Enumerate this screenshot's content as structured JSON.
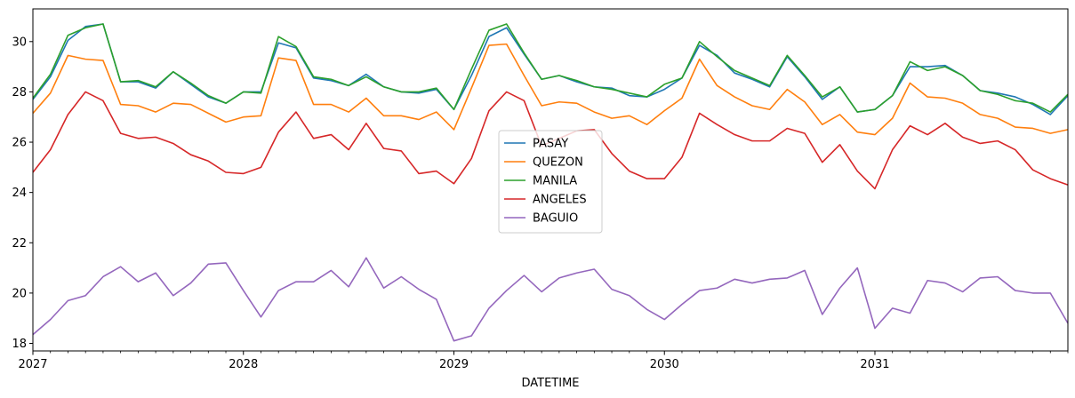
{
  "chart_data": {
    "type": "line",
    "title": "",
    "xlabel": "DATETIME",
    "ylabel": "",
    "x_start": "2027-01",
    "x_step": "month",
    "xlim": [
      "2027-01",
      "2031-12"
    ],
    "ylim": [
      17.7,
      31.3
    ],
    "yticks": [
      18,
      20,
      22,
      24,
      26,
      28,
      30
    ],
    "xticks": [
      {
        "label": "2027",
        "month_index": 0
      },
      {
        "label": "2028",
        "month_index": 12
      },
      {
        "label": "2029",
        "month_index": 24
      },
      {
        "label": "2030",
        "month_index": 36
      },
      {
        "label": "2031",
        "month_index": 48
      }
    ],
    "grid": false,
    "legend_position": "center",
    "series": [
      {
        "name": "PASAY",
        "color": "#1f77b4",
        "values": [
          27.7,
          28.6,
          30.05,
          30.6,
          30.7,
          28.4,
          28.4,
          28.15,
          28.8,
          28.3,
          27.8,
          27.55,
          28.0,
          28.0,
          29.95,
          29.75,
          28.55,
          28.45,
          28.25,
          28.7,
          28.2,
          28.0,
          27.95,
          28.1,
          27.3,
          28.65,
          30.2,
          30.55,
          29.5,
          28.5,
          28.65,
          28.4,
          28.2,
          28.15,
          27.85,
          27.8,
          28.1,
          28.55,
          29.85,
          29.45,
          28.75,
          28.5,
          28.2,
          29.4,
          28.6,
          27.7,
          28.2,
          27.2,
          27.3,
          27.85,
          29.0,
          29.0,
          29.05,
          28.65,
          28.05,
          27.95,
          27.8,
          27.5,
          27.1,
          27.85
        ]
      },
      {
        "name": "QUEZON",
        "color": "#ff7f0e",
        "values": [
          27.15,
          27.95,
          29.45,
          29.3,
          29.25,
          27.5,
          27.45,
          27.2,
          27.55,
          27.5,
          27.15,
          26.8,
          27.0,
          27.05,
          29.35,
          29.25,
          27.5,
          27.5,
          27.2,
          27.75,
          27.05,
          27.05,
          26.9,
          27.2,
          26.5,
          28.15,
          29.85,
          29.9,
          28.65,
          27.45,
          27.6,
          27.55,
          27.2,
          26.95,
          27.05,
          26.7,
          27.25,
          27.75,
          29.3,
          28.25,
          27.8,
          27.45,
          27.3,
          28.1,
          27.6,
          26.7,
          27.1,
          26.4,
          26.3,
          26.95,
          28.35,
          27.8,
          27.75,
          27.55,
          27.1,
          26.95,
          26.6,
          26.55,
          26.35,
          26.5
        ]
      },
      {
        "name": "MANILA",
        "color": "#2ca02c",
        "values": [
          27.75,
          28.7,
          30.25,
          30.55,
          30.7,
          28.4,
          28.45,
          28.2,
          28.8,
          28.35,
          27.85,
          27.55,
          28.0,
          27.95,
          30.2,
          29.8,
          28.6,
          28.5,
          28.25,
          28.6,
          28.2,
          28.0,
          28.0,
          28.15,
          27.3,
          28.9,
          30.45,
          30.7,
          29.55,
          28.5,
          28.65,
          28.45,
          28.2,
          28.1,
          27.95,
          27.8,
          28.3,
          28.55,
          30.0,
          29.4,
          28.85,
          28.55,
          28.25,
          29.45,
          28.65,
          27.8,
          28.2,
          27.2,
          27.3,
          27.85,
          29.2,
          28.85,
          29.0,
          28.65,
          28.05,
          27.9,
          27.65,
          27.55,
          27.2,
          27.9
        ]
      },
      {
        "name": "ANGELES",
        "color": "#d62728",
        "values": [
          24.8,
          25.7,
          27.1,
          28.0,
          27.65,
          26.35,
          26.15,
          26.2,
          25.95,
          25.5,
          25.25,
          24.8,
          24.75,
          25.0,
          26.4,
          27.2,
          26.15,
          26.3,
          25.7,
          26.75,
          25.75,
          25.65,
          24.75,
          24.85,
          24.35,
          25.35,
          27.25,
          28.0,
          27.65,
          25.85,
          26.15,
          26.45,
          26.5,
          25.55,
          24.85,
          24.55,
          24.55,
          25.4,
          27.15,
          26.7,
          26.3,
          26.05,
          26.05,
          26.55,
          26.35,
          25.2,
          25.9,
          24.85,
          24.15,
          25.7,
          26.65,
          26.3,
          26.75,
          26.2,
          25.95,
          26.05,
          25.7,
          24.9,
          24.55,
          24.3
        ]
      },
      {
        "name": "BAGUIO",
        "color": "#9467bd",
        "values": [
          18.35,
          18.95,
          19.7,
          19.9,
          20.65,
          21.05,
          20.45,
          20.8,
          19.9,
          20.4,
          21.15,
          21.2,
          20.1,
          19.05,
          20.1,
          20.45,
          20.45,
          20.9,
          20.25,
          21.4,
          20.2,
          20.65,
          20.15,
          19.75,
          18.1,
          18.3,
          19.4,
          20.1,
          20.7,
          20.05,
          20.6,
          20.8,
          20.95,
          20.15,
          19.9,
          19.35,
          18.95,
          19.55,
          20.1,
          20.2,
          20.55,
          20.4,
          20.55,
          20.6,
          20.9,
          19.15,
          20.2,
          21.0,
          18.6,
          19.4,
          19.2,
          20.5,
          20.4,
          20.05,
          20.6,
          20.65,
          20.1,
          20.0,
          20.0,
          18.8
        ]
      }
    ]
  }
}
